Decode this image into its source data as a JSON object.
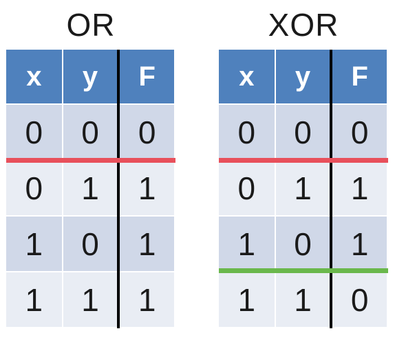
{
  "tables": [
    {
      "title": "OR",
      "headers": [
        "x",
        "y",
        "F"
      ],
      "rows": [
        [
          "0",
          "0",
          "0"
        ],
        [
          "0",
          "1",
          "1"
        ],
        [
          "1",
          "0",
          "1"
        ],
        [
          "1",
          "1",
          "1"
        ]
      ],
      "separator_colors": [
        "#e8505b"
      ]
    },
    {
      "title": "XOR",
      "headers": [
        "x",
        "y",
        "F"
      ],
      "rows": [
        [
          "0",
          "0",
          "0"
        ],
        [
          "0",
          "1",
          "1"
        ],
        [
          "1",
          "0",
          "1"
        ],
        [
          "1",
          "1",
          "0"
        ]
      ],
      "separator_colors": [
        "#e8505b",
        "#6ab84c"
      ]
    }
  ],
  "colors": {
    "header_fill": "#4f81bd",
    "row_fill_dark": "#d0d8e8",
    "row_fill_light": "#e9edf4",
    "output_divider": "#000000"
  }
}
